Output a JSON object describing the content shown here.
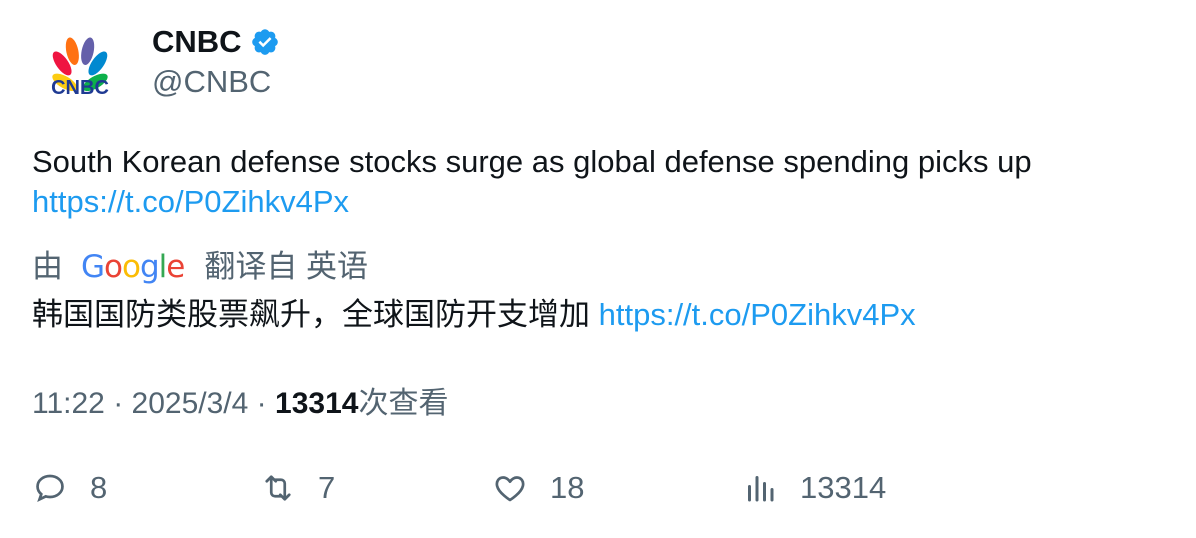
{
  "author": {
    "display_name": "CNBC",
    "handle": "@CNBC",
    "logo_text": "CNBC",
    "verified": true
  },
  "tweet": {
    "text": "South Korean defense stocks surge as global defense spending picks up",
    "link": "https://t.co/P0Zihkv4Px"
  },
  "translation": {
    "by_label": "由",
    "google": [
      "G",
      "o",
      "o",
      "g",
      "l",
      "e"
    ],
    "from_label": "翻译自 英语",
    "text": "韩国国防类股票飙升，全球国防开支增加",
    "link": "https://t.co/P0Zihkv4Px"
  },
  "meta": {
    "time": "11:22",
    "date": "2025/3/4",
    "separator": "·",
    "views": "13314",
    "views_label": "次查看"
  },
  "actions": {
    "replies": "8",
    "retweets": "7",
    "likes": "18",
    "views": "13314"
  },
  "colors": {
    "link": "#1d9bf0",
    "muted": "#536471",
    "verified": "#1d9bf0"
  }
}
